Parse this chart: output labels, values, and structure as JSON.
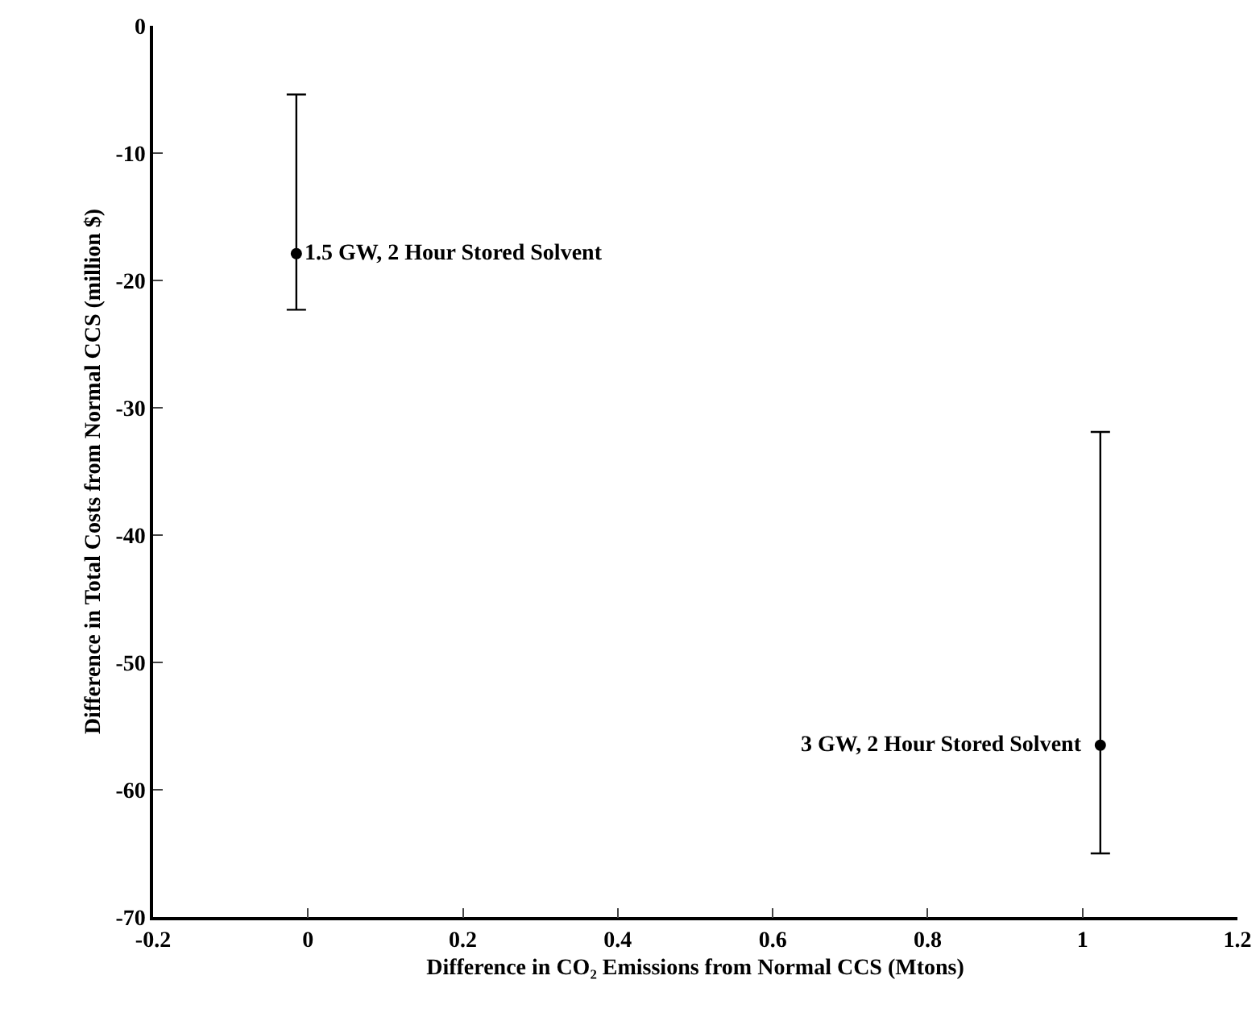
{
  "chart_data": {
    "type": "scatter",
    "xlabel": "Difference in CO₂ Emissions from Normal CCS (Mtons)",
    "ylabel": "Difference in Total Costs from Normal CCS (million $)",
    "x": [
      -0.015,
      1.023
    ],
    "series": [
      {
        "color": "#000000",
        "values": [
          -17.9,
          -56.5
        ],
        "errors": [
          [
            -22.3,
            -5.4
          ],
          [
            -65.0,
            -31.9
          ]
        ]
      }
    ],
    "annotations": [
      {
        "text": "1.5 GW, 2 Hour Stored Solvent",
        "x": -0.015,
        "y": -17.9
      },
      {
        "text": "3 GW, 2 Hour Stored Solvent",
        "x": 1.023,
        "y": -56.5
      }
    ],
    "xlim": [
      -0.2,
      1.2
    ],
    "xticks": [
      -0.2,
      0,
      0.2,
      0.4,
      0.6,
      0.8,
      1,
      1.2
    ],
    "ylim": [
      -70,
      0
    ],
    "yticks": [
      -70,
      -60,
      -50,
      -40,
      -30,
      -20,
      -10,
      0
    ],
    "marker": "circle"
  }
}
